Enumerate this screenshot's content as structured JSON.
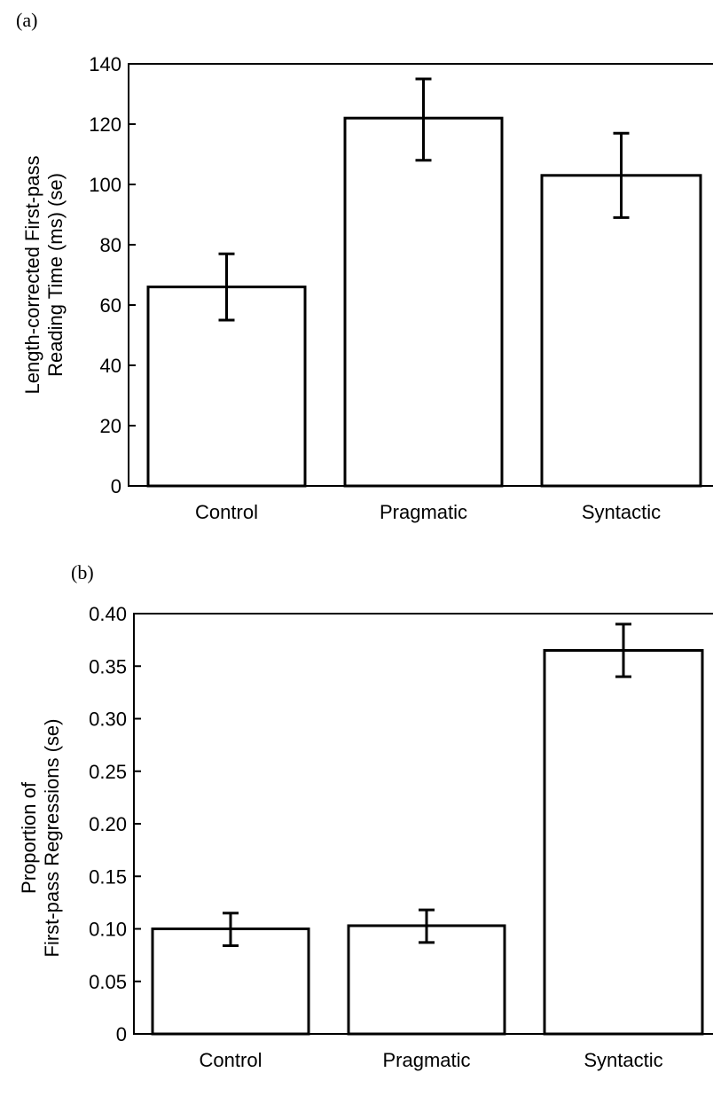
{
  "chart_data": [
    {
      "type": "bar",
      "panel_label": "(a)",
      "categories": [
        "Control",
        "Pragmatic",
        "Syntactic"
      ],
      "values": [
        66,
        122,
        103
      ],
      "error_low": [
        55,
        108,
        89
      ],
      "error_high": [
        77,
        135,
        117
      ],
      "ylabel_lines": [
        "Length-corrected First-pass",
        "Reading Time (ms) (se)"
      ],
      "ylim": [
        0,
        140
      ],
      "yticks": [
        0,
        20,
        40,
        60,
        80,
        100,
        120,
        140
      ],
      "ytick_labels": [
        "0",
        "20",
        "40",
        "60",
        "80",
        "100",
        "120",
        "140"
      ],
      "grid": false
    },
    {
      "type": "bar",
      "panel_label": "(b)",
      "categories": [
        "Control",
        "Pragmatic",
        "Syntactic"
      ],
      "values": [
        0.1,
        0.103,
        0.365
      ],
      "error_low": [
        0.084,
        0.087,
        0.34
      ],
      "error_high": [
        0.115,
        0.118,
        0.39
      ],
      "ylabel_lines": [
        "Proportion of",
        "First-pass Regressions (se)"
      ],
      "ylim": [
        0,
        0.4
      ],
      "yticks": [
        0,
        0.05,
        0.1,
        0.15,
        0.2,
        0.25,
        0.3,
        0.35,
        0.4
      ],
      "ytick_labels": [
        "0",
        "0.05",
        "0.10",
        "0.15",
        "0.20",
        "0.25",
        "0.30",
        "0.35",
        "0.40"
      ],
      "grid": false
    }
  ]
}
